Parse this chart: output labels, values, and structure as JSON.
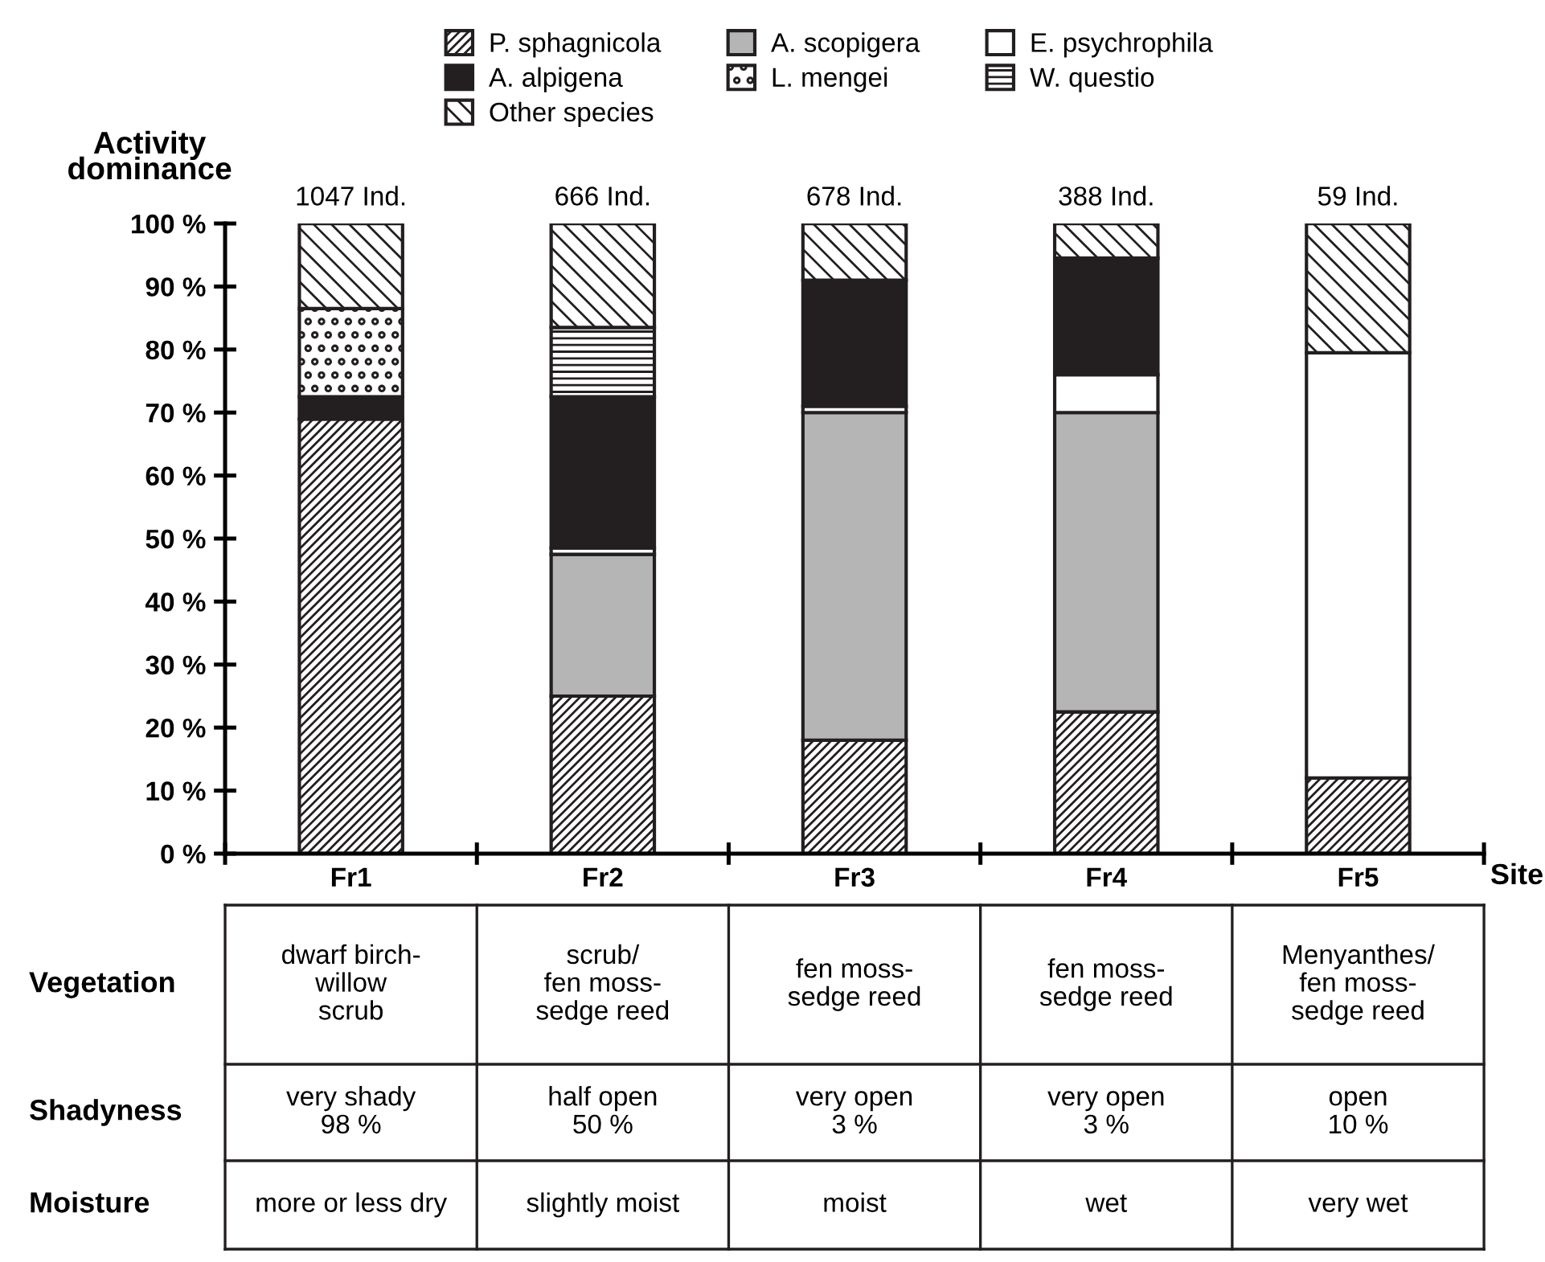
{
  "chart_data": {
    "type": "bar",
    "stacked": true,
    "ylabel": "Activity\ndominance",
    "xlabel": "Site",
    "categories": [
      "Fr1",
      "Fr2",
      "Fr3",
      "Fr4",
      "Fr5"
    ],
    "series": [
      {
        "name": "P. sphagnicola",
        "color": "#231f20",
        "values": [
          69,
          25,
          18,
          22.5,
          12
        ]
      },
      {
        "name": "A. scopigera",
        "color": "#b5b5b5",
        "values": [
          0,
          22.5,
          52,
          47.5,
          0
        ]
      },
      {
        "name": "E. psychrophila",
        "color": "#ffffff",
        "values": [
          0,
          1,
          1,
          6,
          67.5
        ]
      },
      {
        "name": "A. alpigena",
        "color": "#231f20",
        "values": [
          3.5,
          24,
          20,
          18.5,
          0
        ]
      },
      {
        "name": "L. mengei",
        "color": "#231f20",
        "values": [
          14,
          0,
          0,
          0,
          0
        ]
      },
      {
        "name": "W. questio",
        "color": "#231f20",
        "values": [
          0,
          11,
          0,
          0,
          0
        ]
      },
      {
        "name": "Other species",
        "color": "#231f20",
        "values": [
          13.5,
          16.5,
          9,
          5.5,
          20.5
        ]
      }
    ],
    "ylim": [
      0,
      100
    ],
    "yticks": [
      {
        "value": 0,
        "label": "0 %"
      },
      {
        "value": 10,
        "label": "10 %"
      },
      {
        "value": 20,
        "label": "20 %"
      },
      {
        "value": 30,
        "label": "30 %"
      },
      {
        "value": 40,
        "label": "40 %"
      },
      {
        "value": 50,
        "label": "50 %"
      },
      {
        "value": 60,
        "label": "60 %"
      },
      {
        "value": 70,
        "label": "70 %"
      },
      {
        "value": 80,
        "label": "80 %"
      },
      {
        "value": 90,
        "label": "90 %"
      },
      {
        "value": 100,
        "label": "100 %"
      }
    ],
    "legend": "top",
    "grid": false,
    "annotations": [
      "1047 Ind.",
      "666 Ind.",
      "678 Ind.",
      "388 Ind.",
      "59 Ind.",
      "Vegetation",
      "Shadyness",
      "Moisture",
      "dwarf birch-\nwillow\nscrub",
      "scrub/\nfen moss-\nsedge reed",
      "fen moss-\nsedge reed",
      "fen moss-\nsedge reed",
      "Menyanthes/\nfen moss-\nsedge reed",
      "very shady\n98 %",
      "half open\n50 %",
      "very open\n3 %",
      "very open\n3 %",
      "open\n10 %",
      "more or less dry",
      "slightly moist",
      "moist",
      "wet",
      "very wet"
    ]
  }
}
